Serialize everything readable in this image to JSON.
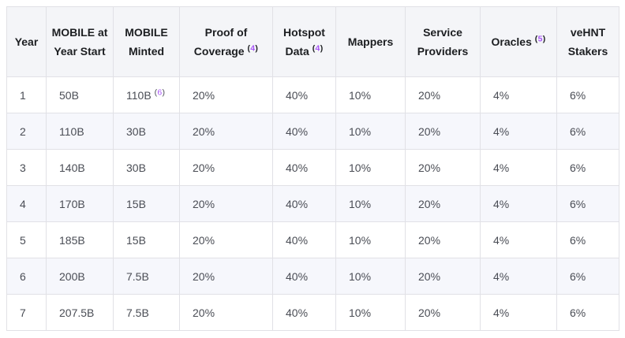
{
  "colors": {
    "header_bg": "#f4f5f8",
    "stripe_bg": "#f6f7fc",
    "border": "#e1e1e6",
    "header_text": "#1c1e21",
    "body_text": "#4a4d55",
    "footnote_accent": "#a855f7"
  },
  "table": {
    "columns": [
      {
        "label": "Year",
        "footnote": null
      },
      {
        "label": "MOBILE at Year Start",
        "footnote": null
      },
      {
        "label": "MOBILE Minted",
        "footnote": null
      },
      {
        "label": "Proof of Coverage",
        "footnote": "4"
      },
      {
        "label": "Hotspot Data",
        "footnote": "4"
      },
      {
        "label": "Mappers",
        "footnote": null
      },
      {
        "label": "Service Providers",
        "footnote": null
      },
      {
        "label": "Oracles",
        "footnote": "5"
      },
      {
        "label": "veHNT Stakers",
        "footnote": null
      }
    ],
    "rows": [
      {
        "cells": [
          {
            "text": "1"
          },
          {
            "text": "50B"
          },
          {
            "text": "110B",
            "footnote": "6"
          },
          {
            "text": "20%"
          },
          {
            "text": "40%"
          },
          {
            "text": "10%"
          },
          {
            "text": "20%"
          },
          {
            "text": "4%"
          },
          {
            "text": "6%"
          }
        ]
      },
      {
        "cells": [
          {
            "text": "2"
          },
          {
            "text": "110B"
          },
          {
            "text": "30B"
          },
          {
            "text": "20%"
          },
          {
            "text": "40%"
          },
          {
            "text": "10%"
          },
          {
            "text": "20%"
          },
          {
            "text": "4%"
          },
          {
            "text": "6%"
          }
        ]
      },
      {
        "cells": [
          {
            "text": "3"
          },
          {
            "text": "140B"
          },
          {
            "text": "30B"
          },
          {
            "text": "20%"
          },
          {
            "text": "40%"
          },
          {
            "text": "10%"
          },
          {
            "text": "20%"
          },
          {
            "text": "4%"
          },
          {
            "text": "6%"
          }
        ]
      },
      {
        "cells": [
          {
            "text": "4"
          },
          {
            "text": "170B"
          },
          {
            "text": "15B"
          },
          {
            "text": "20%"
          },
          {
            "text": "40%"
          },
          {
            "text": "10%"
          },
          {
            "text": "20%"
          },
          {
            "text": "4%"
          },
          {
            "text": "6%"
          }
        ]
      },
      {
        "cells": [
          {
            "text": "5"
          },
          {
            "text": "185B"
          },
          {
            "text": "15B"
          },
          {
            "text": "20%"
          },
          {
            "text": "40%"
          },
          {
            "text": "10%"
          },
          {
            "text": "20%"
          },
          {
            "text": "4%"
          },
          {
            "text": "6%"
          }
        ]
      },
      {
        "cells": [
          {
            "text": "6"
          },
          {
            "text": "200B"
          },
          {
            "text": "7.5B"
          },
          {
            "text": "20%"
          },
          {
            "text": "40%"
          },
          {
            "text": "10%"
          },
          {
            "text": "20%"
          },
          {
            "text": "4%"
          },
          {
            "text": "6%"
          }
        ]
      },
      {
        "cells": [
          {
            "text": "7"
          },
          {
            "text": "207.5B"
          },
          {
            "text": "7.5B"
          },
          {
            "text": "20%"
          },
          {
            "text": "40%"
          },
          {
            "text": "10%"
          },
          {
            "text": "20%"
          },
          {
            "text": "4%"
          },
          {
            "text": "6%"
          }
        ]
      }
    ]
  },
  "chart_data": {
    "type": "table",
    "columns": [
      "Year",
      "MOBILE at Year Start",
      "MOBILE Minted",
      "Proof of Coverage (4)",
      "Hotspot Data (4)",
      "Mappers",
      "Service Providers",
      "Oracles (5)",
      "veHNT Stakers"
    ],
    "rows": [
      [
        "1",
        "50B",
        "110B (6)",
        "20%",
        "40%",
        "10%",
        "20%",
        "4%",
        "6%"
      ],
      [
        "2",
        "110B",
        "30B",
        "20%",
        "40%",
        "10%",
        "20%",
        "4%",
        "6%"
      ],
      [
        "3",
        "140B",
        "30B",
        "20%",
        "40%",
        "10%",
        "20%",
        "4%",
        "6%"
      ],
      [
        "4",
        "170B",
        "15B",
        "20%",
        "40%",
        "10%",
        "20%",
        "4%",
        "6%"
      ],
      [
        "5",
        "185B",
        "15B",
        "20%",
        "40%",
        "10%",
        "20%",
        "4%",
        "6%"
      ],
      [
        "6",
        "200B",
        "7.5B",
        "20%",
        "40%",
        "10%",
        "20%",
        "4%",
        "6%"
      ],
      [
        "7",
        "207.5B",
        "7.5B",
        "20%",
        "40%",
        "10%",
        "20%",
        "4%",
        "6%"
      ]
    ],
    "footnote_refs": [
      "4",
      "5",
      "6"
    ]
  }
}
